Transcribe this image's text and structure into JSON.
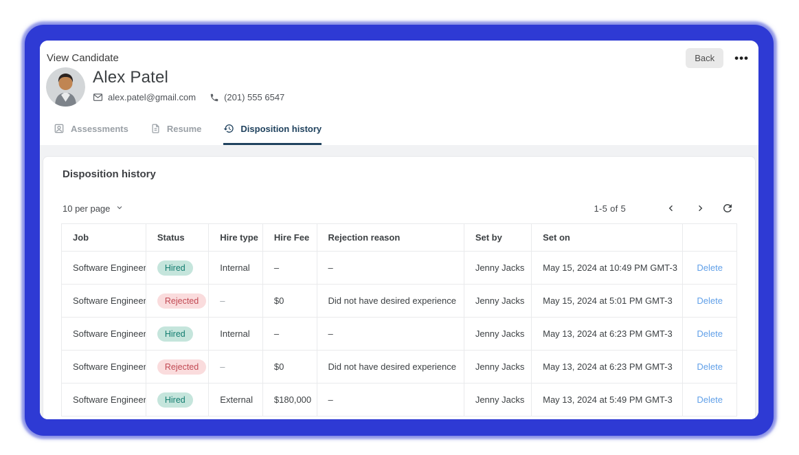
{
  "window": {
    "title": "View Candidate",
    "back_label": "Back",
    "more_label": "•••"
  },
  "candidate": {
    "name": "Alex Patel",
    "email": "alex.patel@gmail.com",
    "phone": "(201) 555 6547"
  },
  "tabs": [
    {
      "label": "Assessments",
      "icon": "assessments-icon",
      "active": false
    },
    {
      "label": "Resume",
      "icon": "resume-icon",
      "active": false
    },
    {
      "label": "Disposition history",
      "icon": "history-icon",
      "active": true
    }
  ],
  "section": {
    "heading": "Disposition history",
    "per_page_label": "10 per page",
    "range_label": "1-5  of  5"
  },
  "table": {
    "columns": [
      "Job",
      "Status",
      "Hire type",
      "Hire Fee",
      "Rejection reason",
      "Set by",
      "Set on",
      ""
    ],
    "rows": [
      {
        "job": "Software Engineer",
        "status": "Hired",
        "hire_type": "Internal",
        "hire_fee": "–",
        "rejection_reason": "–",
        "set_by": "Jenny Jacks",
        "set_on": "May 15, 2024 at 10:49 PM GMT-3",
        "action": "Delete"
      },
      {
        "job": "Software Engineer",
        "status": "Rejected",
        "hire_type": "–",
        "hire_fee": "$0",
        "rejection_reason": "Did not have desired experience",
        "set_by": "Jenny Jacks",
        "set_on": "May 15, 2024 at 5:01 PM GMT-3",
        "action": "Delete"
      },
      {
        "job": "Software Engineer",
        "status": "Hired",
        "hire_type": "Internal",
        "hire_fee": "–",
        "rejection_reason": "–",
        "set_by": "Jenny Jacks",
        "set_on": "May 13, 2024 at 6:23 PM GMT-3",
        "action": "Delete"
      },
      {
        "job": "Software Engineer",
        "status": "Rejected",
        "hire_type": "–",
        "hire_fee": "$0",
        "rejection_reason": "Did not have desired experience",
        "set_by": "Jenny Jacks",
        "set_on": "May 13, 2024 at 6:23 PM GMT-3",
        "action": "Delete"
      },
      {
        "job": "Software Engineer",
        "status": "Hired",
        "hire_type": "External",
        "hire_fee": "$180,000",
        "rejection_reason": "–",
        "set_by": "Jenny Jacks",
        "set_on": "May 13, 2024 at 5:49 PM GMT-3",
        "action": "Delete"
      }
    ]
  },
  "colors": {
    "frame_blue": "#2e3ad4",
    "tab_active": "#20425e",
    "hired_bg": "#c5e5dc",
    "hired_text": "#117c6f",
    "rejected_bg": "#fadcdd",
    "rejected_text": "#c14953",
    "delete_link": "#5f9fe8"
  }
}
